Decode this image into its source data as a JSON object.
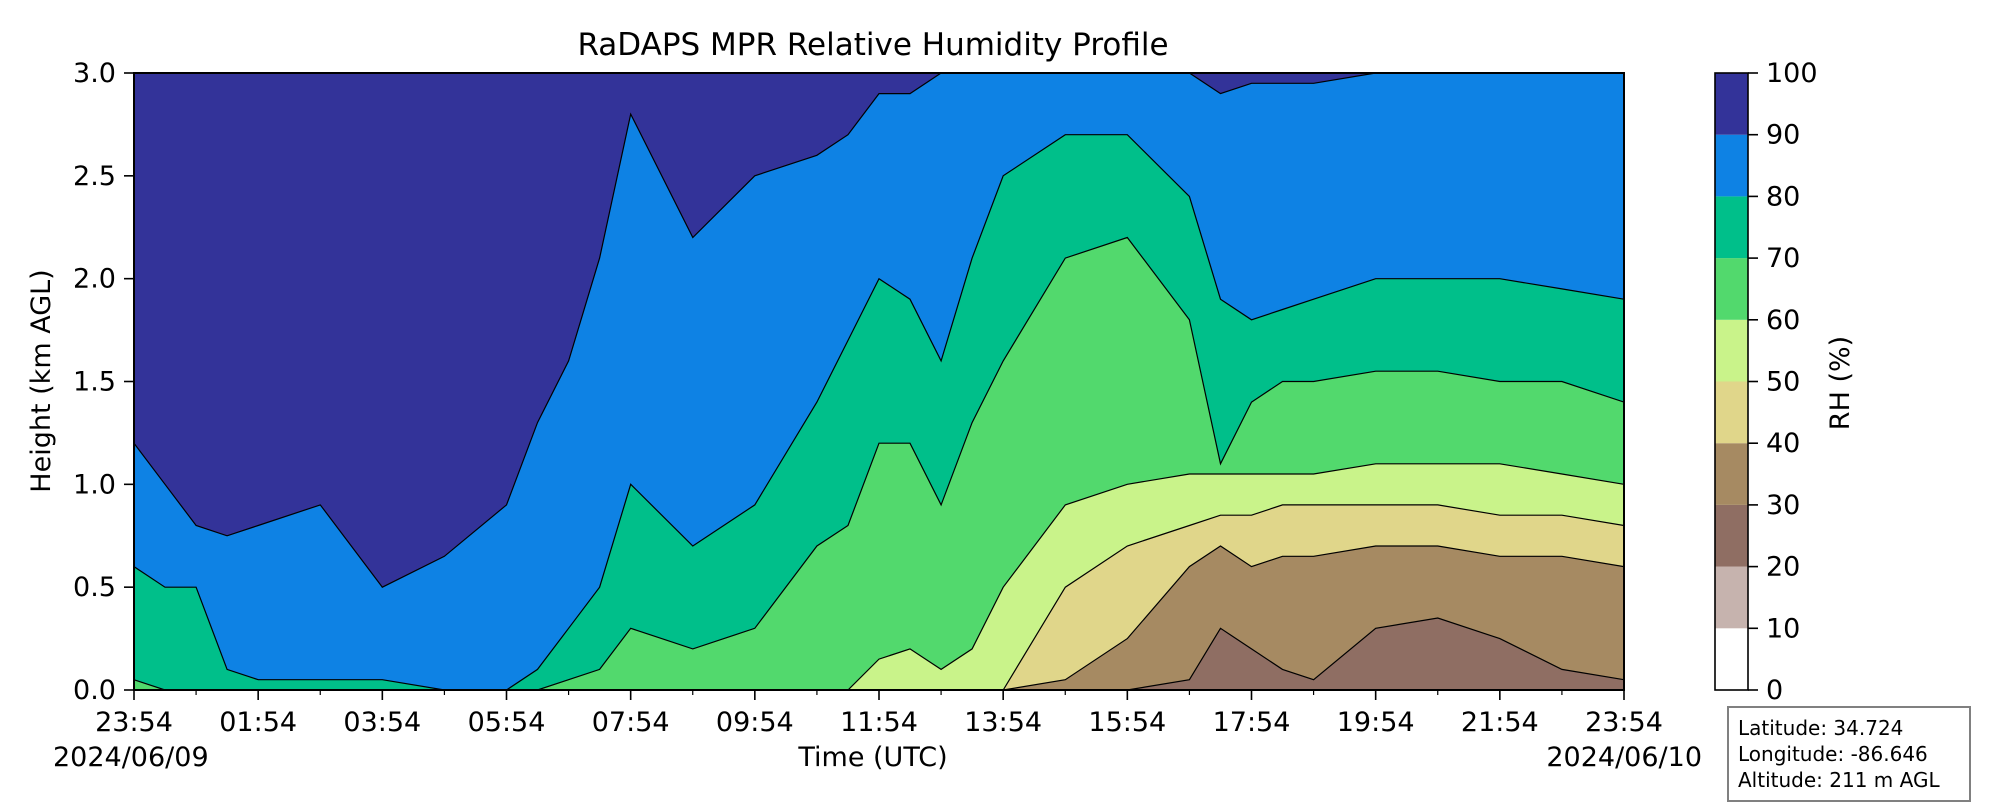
{
  "chart_data": {
    "type": "heatmap",
    "title": "RaDAPS MPR Relative Humidity Profile",
    "xlabel": "Time (UTC)",
    "ylabel": "Height (km AGL)",
    "xlim": [
      "2024-06-09 23:54",
      "2024-06-10 23:54"
    ],
    "ylim": [
      0.0,
      3.0
    ],
    "x_tick_labels": [
      "23:54",
      "01:54",
      "03:54",
      "05:54",
      "07:54",
      "09:54",
      "11:54",
      "13:54",
      "15:54",
      "17:54",
      "19:54",
      "21:54",
      "23:54"
    ],
    "x_date_start": "2024/06/09",
    "x_date_end": "2024/06/10",
    "y_ticks": [
      0.0,
      0.5,
      1.0,
      1.5,
      2.0,
      2.5,
      3.0
    ],
    "y_tick_labels": [
      "0.0",
      "0.5",
      "1.0",
      "1.5",
      "2.0",
      "2.5",
      "3.0"
    ],
    "colorbar": {
      "label": "RH (%)",
      "levels": [
        0,
        10,
        20,
        30,
        40,
        50,
        60,
        70,
        80,
        90,
        100
      ],
      "tick_labels": [
        "0",
        "10",
        "20",
        "30",
        "40",
        "50",
        "60",
        "70",
        "80",
        "90",
        "100"
      ],
      "colors": [
        "#ffffff",
        "#c6b3ae",
        "#8f6e63",
        "#a68a62",
        "#e0d68a",
        "#c9f38a",
        "#52d96d",
        "#00bf8a",
        "#0e82e4",
        "#333399"
      ]
    },
    "profile_times_h": [
      0,
      0.5,
      1,
      1.5,
      2,
      3,
      4,
      5,
      6,
      6.5,
      7,
      7.5,
      8,
      9,
      10,
      11,
      11.5,
      12,
      12.5,
      13,
      13.5,
      14,
      15,
      16,
      17,
      17.5,
      18,
      18.5,
      19,
      20,
      21,
      22,
      23,
      24
    ],
    "levels_km": [
      {
        "band": "0",
        "bounds_rh": [
          0,
          10
        ],
        "tops_km": [
          0,
          0,
          0,
          0,
          0,
          0,
          0,
          0,
          0,
          0,
          0,
          0,
          0,
          0,
          0,
          0,
          0,
          0,
          0,
          0,
          0,
          0,
          0,
          0,
          0,
          0,
          0,
          0,
          0,
          0,
          0,
          0,
          0,
          0
        ]
      },
      {
        "band": "1",
        "bounds_rh": [
          10,
          20
        ],
        "tops_km": [
          0,
          0,
          0,
          0,
          0,
          0,
          0,
          0,
          0,
          0,
          0,
          0,
          0,
          0,
          0,
          0,
          0,
          0,
          0,
          0,
          0,
          0,
          0,
          0,
          0,
          0,
          0,
          0,
          0,
          0,
          0,
          0,
          0,
          0
        ]
      },
      {
        "band": "2",
        "bounds_rh": [
          20,
          30
        ],
        "tops_km": [
          0,
          0,
          0,
          0,
          0,
          0,
          0,
          0,
          0,
          0,
          0,
          0,
          0,
          0,
          0,
          0,
          0,
          0,
          0,
          0,
          0,
          0,
          0,
          0,
          0.05,
          0.3,
          0.2,
          0.1,
          0.05,
          0.3,
          0.35,
          0.25,
          0.1,
          0.05
        ]
      },
      {
        "band": "3",
        "bounds_rh": [
          30,
          40
        ],
        "tops_km": [
          0,
          0,
          0,
          0,
          0,
          0,
          0,
          0,
          0,
          0,
          0,
          0,
          0,
          0,
          0,
          0,
          0,
          0,
          0,
          0,
          0,
          0,
          0.05,
          0.25,
          0.6,
          0.7,
          0.6,
          0.65,
          0.65,
          0.7,
          0.7,
          0.65,
          0.65,
          0.6
        ]
      },
      {
        "band": "4",
        "bounds_rh": [
          40,
          50
        ],
        "tops_km": [
          0,
          0,
          0,
          0,
          0,
          0,
          0,
          0,
          0,
          0,
          0,
          0,
          0,
          0,
          0,
          0,
          0,
          0,
          0,
          0,
          0,
          0,
          0.5,
          0.7,
          0.8,
          0.85,
          0.85,
          0.9,
          0.9,
          0.9,
          0.9,
          0.85,
          0.85,
          0.8
        ]
      },
      {
        "band": "5",
        "bounds_rh": [
          50,
          60
        ],
        "tops_km": [
          0,
          0,
          0,
          0,
          0,
          0,
          0,
          0,
          0,
          0,
          0,
          0,
          0,
          0,
          0,
          0,
          0,
          0.15,
          0.2,
          0.1,
          0.2,
          0.5,
          0.9,
          1.0,
          1.05,
          1.05,
          1.05,
          1.05,
          1.05,
          1.1,
          1.1,
          1.1,
          1.05,
          1.0
        ]
      },
      {
        "band": "6",
        "bounds_rh": [
          60,
          70
        ],
        "tops_km": [
          0.05,
          0,
          0,
          0,
          0,
          0,
          0,
          0,
          0,
          0,
          0.05,
          0.1,
          0.3,
          0.2,
          0.3,
          0.7,
          0.8,
          1.2,
          1.2,
          0.9,
          1.3,
          1.6,
          2.1,
          2.2,
          1.8,
          1.1,
          1.4,
          1.5,
          1.5,
          1.55,
          1.55,
          1.5,
          1.5,
          1.4
        ]
      },
      {
        "band": "7",
        "bounds_rh": [
          70,
          80
        ],
        "tops_km": [
          0.6,
          0.5,
          0.5,
          0.1,
          0.05,
          0.05,
          0.05,
          0,
          0,
          0.1,
          0.3,
          0.5,
          1.0,
          0.7,
          0.9,
          1.4,
          1.7,
          2.0,
          1.9,
          1.6,
          2.1,
          2.5,
          2.7,
          2.7,
          2.4,
          1.9,
          1.8,
          1.85,
          1.9,
          2.0,
          2.0,
          2.0,
          1.95,
          1.9
        ]
      },
      {
        "band": "8",
        "bounds_rh": [
          80,
          90
        ],
        "tops_km": [
          1.2,
          1.0,
          0.8,
          0.75,
          0.8,
          0.9,
          0.5,
          0.65,
          0.9,
          1.3,
          1.6,
          2.1,
          2.8,
          2.2,
          2.5,
          2.6,
          2.7,
          2.9,
          2.9,
          3.0,
          3.0,
          3.0,
          3.0,
          3.0,
          3.0,
          2.9,
          2.95,
          2.95,
          2.95,
          3.0,
          3.0,
          3.0,
          3.0,
          3.0
        ]
      },
      {
        "band": "9",
        "bounds_rh": [
          90,
          100
        ],
        "tops_km": [
          3.0,
          3.0,
          3.0,
          3.0,
          3.0,
          3.0,
          3.0,
          3.0,
          3.0,
          3.0,
          3.0,
          3.0,
          3.0,
          3.0,
          3.0,
          3.0,
          3.0,
          3.0,
          3.0,
          3.0,
          3.0,
          3.0,
          3.0,
          3.0,
          3.0,
          3.0,
          3.0,
          3.0,
          3.0,
          3.0,
          3.0,
          3.0,
          3.0,
          3.0
        ]
      }
    ]
  },
  "info_box": {
    "latitude": "Latitude: 34.724",
    "longitude": "Longitude: -86.646",
    "altitude": "Altitude: 211 m AGL"
  }
}
